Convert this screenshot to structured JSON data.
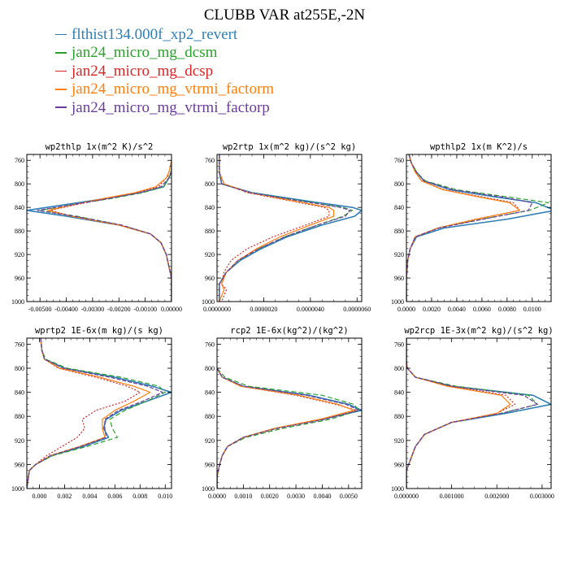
{
  "figure": {
    "title": "CLUBB VAR at255E,-2N",
    "legend": [
      {
        "name": "flthist134.000f_xp2_revert",
        "color": "#2f7fb6"
      },
      {
        "name": "jan24_micro_mg_dcsm",
        "color": "#2ca02c"
      },
      {
        "name": "jan24_micro_mg_dcsp",
        "color": "#d62728"
      },
      {
        "name": "jan24_micro_mg_vtrmi_factorm",
        "color": "#ff7f0e"
      },
      {
        "name": "jan24_micro_mg_vtrmi_factorp",
        "color": "#6a3d9a"
      }
    ]
  },
  "chart_data": [
    {
      "type": "line",
      "title": "wp2thlp   1x(m^2 K)/s^2",
      "xlim": [
        -0.0055,
        0.0
      ],
      "ylim": [
        1000,
        750
      ],
      "xticks": [
        -0.005,
        -0.004,
        -0.003,
        -0.002,
        -0.001,
        0.0
      ],
      "xtick_labels": [
        "-0.00500",
        "-0.00400",
        "-0.00300",
        "-0.00200",
        "-0.00100",
        "0.00000"
      ],
      "yticks": [
        760,
        800,
        840,
        880,
        920,
        960,
        1000
      ],
      "y": [
        760,
        780,
        790,
        805,
        815,
        825,
        835,
        845,
        855,
        870,
        885,
        900,
        920,
        940,
        960,
        980,
        1000
      ],
      "series": [
        {
          "values": [
            0,
            0,
            -0.0001,
            -0.0003,
            -0.0012,
            -0.0025,
            -0.004,
            -0.0055,
            -0.004,
            -0.002,
            -0.0008,
            -0.0004,
            -0.0002,
            -0.0001,
            0,
            0,
            0
          ]
        },
        {
          "values": [
            0,
            0,
            -0.0001,
            -0.0003,
            -0.0011,
            -0.0023,
            -0.0037,
            -0.005,
            -0.0036,
            -0.0019,
            -0.0008,
            -0.0004,
            -0.0002,
            -0.0001,
            0,
            0,
            0
          ]
        },
        {
          "values": [
            0,
            0,
            -0.0002,
            -0.0005,
            -0.0013,
            -0.0025,
            -0.0036,
            -0.0046,
            -0.0038,
            -0.002,
            -0.0008,
            -0.0004,
            -0.0002,
            -0.0001,
            0,
            0,
            0
          ]
        },
        {
          "values": [
            0,
            -0.0001,
            -0.0002,
            -0.0006,
            -0.0014,
            -0.0026,
            -0.0037,
            -0.0047,
            -0.0038,
            -0.002,
            -0.0008,
            -0.0004,
            -0.0002,
            -0.0001,
            0,
            0,
            0
          ]
        },
        {
          "values": [
            0,
            0,
            -0.0001,
            -0.0004,
            -0.0012,
            -0.0024,
            -0.0037,
            -0.0051,
            -0.0037,
            -0.0019,
            -0.0008,
            -0.0004,
            -0.0002,
            -0.0001,
            0,
            0,
            0
          ]
        }
      ]
    },
    {
      "type": "line",
      "title": "wp2rtp   1x(m^2 kg)/(s^2 kg)",
      "xlim": [
        0.0,
        6.2e-06
      ],
      "ylim": [
        1000,
        750
      ],
      "xticks": [
        0,
        2e-06,
        4e-06,
        6e-06
      ],
      "xtick_labels": [
        "0.0000000",
        "0.0000020",
        "0.0000040",
        "0.0000060"
      ],
      "yticks": [
        760,
        800,
        840,
        880,
        920,
        960,
        1000
      ],
      "y": [
        750,
        780,
        800,
        815,
        830,
        840,
        845,
        855,
        870,
        890,
        910,
        930,
        950,
        970,
        980,
        1000
      ],
      "series": [
        {
          "values": [
            1e-07,
            1e-07,
            2e-07,
            1.5e-06,
            4e-06,
            5.8e-06,
            6.2e-06,
            5.9e-06,
            4.5e-06,
            3e-06,
            1.9e-06,
            1e-06,
            4e-07,
            1e-07,
            1e-07,
            1e-07
          ]
        },
        {
          "values": [
            1e-07,
            1e-07,
            2e-07,
            1.4e-06,
            3.8e-06,
            5.4e-06,
            5.8e-06,
            5.4e-06,
            4.3e-06,
            2.9e-06,
            1.8e-06,
            9e-07,
            4e-07,
            1e-07,
            1e-07,
            1e-07
          ]
        },
        {
          "values": [
            1e-07,
            1e-07,
            3e-07,
            1.3e-06,
            3.3e-06,
            4.6e-06,
            4.8e-06,
            4.8e-06,
            3.8e-06,
            2.4e-06,
            1.3e-06,
            6e-07,
            3e-07,
            2e-07,
            4e-07,
            2e-07
          ]
        },
        {
          "values": [
            1e-07,
            1e-07,
            3e-07,
            1.4e-06,
            3.4e-06,
            4.8e-06,
            5e-06,
            5e-06,
            4e-06,
            2.7e-06,
            1.7e-06,
            9e-07,
            4e-07,
            2e-07,
            3e-07,
            1e-07
          ]
        },
        {
          "values": [
            1e-07,
            1e-07,
            2e-07,
            1.4e-06,
            3.7e-06,
            5.3e-06,
            5.7e-06,
            5.5e-06,
            4.3e-06,
            2.9e-06,
            1.8e-06,
            9e-07,
            4e-07,
            1e-07,
            1e-07,
            1e-07
          ]
        }
      ]
    },
    {
      "type": "line",
      "title": "wpthlp2   1x(m K^2)/s",
      "xlim": [
        0.0,
        0.0115
      ],
      "ylim": [
        1000,
        750
      ],
      "xticks": [
        0,
        0.002,
        0.004,
        0.006,
        0.008,
        0.01
      ],
      "xtick_labels": [
        "0.0000",
        "0.0020",
        "0.0040",
        "0.0060",
        "0.0080",
        "0.0100"
      ],
      "yticks": [
        760,
        800,
        840,
        880,
        920,
        960,
        1000
      ],
      "y": [
        750,
        765,
        780,
        795,
        810,
        822,
        832,
        845,
        860,
        875,
        890,
        910,
        930,
        960,
        1000
      ],
      "series": [
        {
          "values": [
            0.0002,
            0.0004,
            0.0008,
            0.0014,
            0.0035,
            0.007,
            0.0103,
            0.0118,
            0.008,
            0.003,
            0.0008,
            0.0003,
            0.0001,
            0,
            0
          ]
        },
        {
          "values": [
            0.0002,
            0.0004,
            0.0008,
            0.0015,
            0.004,
            0.008,
            0.0113,
            0.0098,
            0.006,
            0.0025,
            0.0007,
            0.0003,
            0.0001,
            0,
            0
          ]
        },
        {
          "values": [
            0.0002,
            0.0004,
            0.0007,
            0.0012,
            0.003,
            0.006,
            0.0085,
            0.009,
            0.0055,
            0.0025,
            0.0007,
            0.0003,
            0.0001,
            0,
            0
          ]
        },
        {
          "values": [
            0.0002,
            0.0004,
            0.0007,
            0.0012,
            0.0029,
            0.0057,
            0.0082,
            0.009,
            0.0056,
            0.0025,
            0.0007,
            0.0003,
            0.0001,
            0,
            0
          ]
        },
        {
          "values": [
            0.0002,
            0.0004,
            0.0008,
            0.0014,
            0.0037,
            0.0075,
            0.01,
            0.0097,
            0.0061,
            0.0026,
            0.0007,
            0.0003,
            0.0001,
            0,
            0
          ]
        }
      ]
    },
    {
      "type": "line",
      "title": "wprtp2   1E-6x(m kg)/(s kg)",
      "xlim": [
        -0.001,
        0.0105
      ],
      "ylim": [
        1000,
        750
      ],
      "xticks": [
        0,
        0.002,
        0.004,
        0.006,
        0.008,
        0.01
      ],
      "xtick_labels": [
        "0.000",
        "0.002",
        "0.004",
        "0.006",
        "0.008",
        "0.010"
      ],
      "yticks": [
        760,
        800,
        840,
        880,
        920,
        960,
        1000
      ],
      "y": [
        750,
        770,
        785,
        800,
        815,
        830,
        840,
        855,
        870,
        885,
        900,
        915,
        930,
        945,
        960,
        970,
        1000
      ],
      "series": [
        {
          "values": [
            0.0001,
            0.0002,
            0.0004,
            0.002,
            0.006,
            0.009,
            0.0105,
            0.0085,
            0.0065,
            0.0053,
            0.0051,
            0.0055,
            0.0035,
            0.001,
            -0.0003,
            -0.0008,
            -0.001
          ]
        },
        {
          "values": [
            0.0001,
            0.0002,
            0.0005,
            0.0022,
            0.0065,
            0.0095,
            0.01,
            0.0085,
            0.0068,
            0.0056,
            0.0058,
            0.0062,
            0.0038,
            0.0011,
            -0.0003,
            -0.0008,
            -0.001
          ]
        },
        {
          "values": [
            0.0001,
            0.0002,
            0.0004,
            0.0015,
            0.0045,
            0.007,
            0.008,
            0.0068,
            0.0045,
            0.0034,
            0.0036,
            0.003,
            0.0018,
            0.0006,
            -0.0003,
            -0.0008,
            -0.001
          ]
        },
        {
          "values": [
            0.0001,
            0.0002,
            0.0004,
            0.0016,
            0.0048,
            0.0075,
            0.0088,
            0.0075,
            0.006,
            0.005,
            0.005,
            0.0052,
            0.0032,
            0.0009,
            -0.0003,
            -0.0008,
            -0.001
          ]
        },
        {
          "values": [
            0.0001,
            0.0002,
            0.0004,
            0.0019,
            0.0056,
            0.0086,
            0.0098,
            0.0082,
            0.0063,
            0.0052,
            0.0052,
            0.0053,
            0.0033,
            0.0009,
            -0.0003,
            -0.0008,
            -0.001
          ]
        }
      ]
    },
    {
      "type": "line",
      "title": "rcp2   1E-6x(kg^2)/(kg^2)",
      "xlim": [
        0.0,
        0.0055
      ],
      "ylim": [
        1000,
        750
      ],
      "xticks": [
        0,
        0.001,
        0.002,
        0.003,
        0.004,
        0.005
      ],
      "xtick_labels": [
        "0.0000",
        "0.0010",
        "0.0020",
        "0.0030",
        "0.0040",
        "0.0050"
      ],
      "yticks": [
        760,
        800,
        840,
        880,
        920,
        960,
        1000
      ],
      "y": [
        800,
        815,
        830,
        845,
        860,
        870,
        885,
        900,
        915,
        930,
        945,
        960,
        980,
        1000
      ],
      "series": [
        {
          "values": [
            0.0,
            0.0002,
            0.001,
            0.0035,
            0.005,
            0.0055,
            0.004,
            0.0022,
            0.001,
            0.0004,
            0.0002,
            0.0001,
            0,
            0
          ]
        },
        {
          "values": [
            0.0,
            0.0003,
            0.0012,
            0.004,
            0.0052,
            0.0054,
            0.0043,
            0.0025,
            0.0011,
            0.0004,
            0.0002,
            0.0001,
            0,
            0
          ]
        },
        {
          "values": [
            0.0,
            0.0002,
            0.0009,
            0.003,
            0.0045,
            0.0053,
            0.0039,
            0.0022,
            0.001,
            0.0004,
            0.0002,
            0.0001,
            0,
            0
          ]
        },
        {
          "values": [
            0.0,
            0.0002,
            0.0009,
            0.0031,
            0.0046,
            0.0052,
            0.0039,
            0.0022,
            0.001,
            0.0004,
            0.0002,
            0.0001,
            0,
            0
          ]
        },
        {
          "values": [
            0.0,
            0.0002,
            0.001,
            0.0034,
            0.0049,
            0.0054,
            0.0041,
            0.0023,
            0.001,
            0.0004,
            0.0002,
            0.0001,
            0,
            0
          ]
        }
      ]
    },
    {
      "type": "line",
      "title": "wp2rcp   1E-3x(m^2 kg)/(s^2 kg)",
      "xlim": [
        0.0,
        0.0032
      ],
      "ylim": [
        1000,
        750
      ],
      "xticks": [
        0,
        0.001,
        0.002,
        0.003
      ],
      "xtick_labels": [
        "0.000000",
        "0.001000",
        "0.002000",
        "0.003000"
      ],
      "yticks": [
        760,
        800,
        840,
        880,
        920,
        960,
        1000
      ],
      "y": [
        750,
        790,
        800,
        815,
        830,
        845,
        860,
        875,
        890,
        910,
        930,
        950,
        970,
        1000
      ],
      "series": [
        {
          "values": [
            0,
            0,
            2e-05,
            0.0002,
            0.001,
            0.0028,
            0.0032,
            0.0022,
            0.001,
            0.0004,
            0.0002,
            0.0001,
            0,
            0
          ]
        },
        {
          "values": [
            0,
            0,
            2e-05,
            0.0002,
            0.0011,
            0.0027,
            0.0029,
            0.0021,
            0.001,
            0.0004,
            0.0002,
            0.0001,
            0,
            0
          ]
        },
        {
          "values": [
            0,
            0,
            2e-05,
            0.0002,
            0.001,
            0.0022,
            0.0024,
            0.002,
            0.001,
            0.0004,
            0.0002,
            0.0001,
            0,
            0
          ]
        },
        {
          "values": [
            0,
            0,
            2e-05,
            0.0002,
            0.0009,
            0.0021,
            0.0023,
            0.002,
            0.001,
            0.0004,
            0.0002,
            0.0001,
            0,
            0
          ]
        },
        {
          "values": [
            0,
            0,
            2e-05,
            0.0002,
            0.001,
            0.0026,
            0.0029,
            0.0021,
            0.001,
            0.0004,
            0.0002,
            0.0001,
            0,
            0
          ]
        }
      ]
    }
  ]
}
